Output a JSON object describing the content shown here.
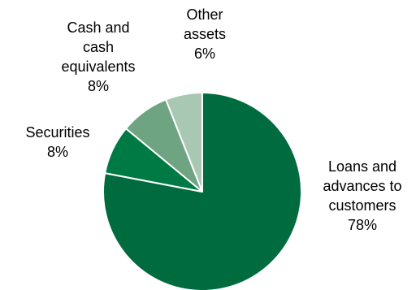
{
  "chart_data": {
    "type": "pie",
    "title": "",
    "slices": [
      {
        "label_lines": [
          "Loans and",
          "advances to",
          "customers"
        ],
        "percent_label": "78%",
        "value": 78,
        "color": "#006b3f"
      },
      {
        "label_lines": [
          "Securities"
        ],
        "percent_label": "8%",
        "value": 8,
        "color": "#007a45"
      },
      {
        "label_lines": [
          "Cash and",
          "cash",
          "equivalents"
        ],
        "percent_label": "8%",
        "value": 8,
        "color": "#6fa482"
      },
      {
        "label_lines": [
          "Other",
          "assets"
        ],
        "percent_label": "6%",
        "value": 6,
        "color": "#a9c8b3"
      }
    ],
    "legend": "none",
    "data_labels": "outside"
  }
}
